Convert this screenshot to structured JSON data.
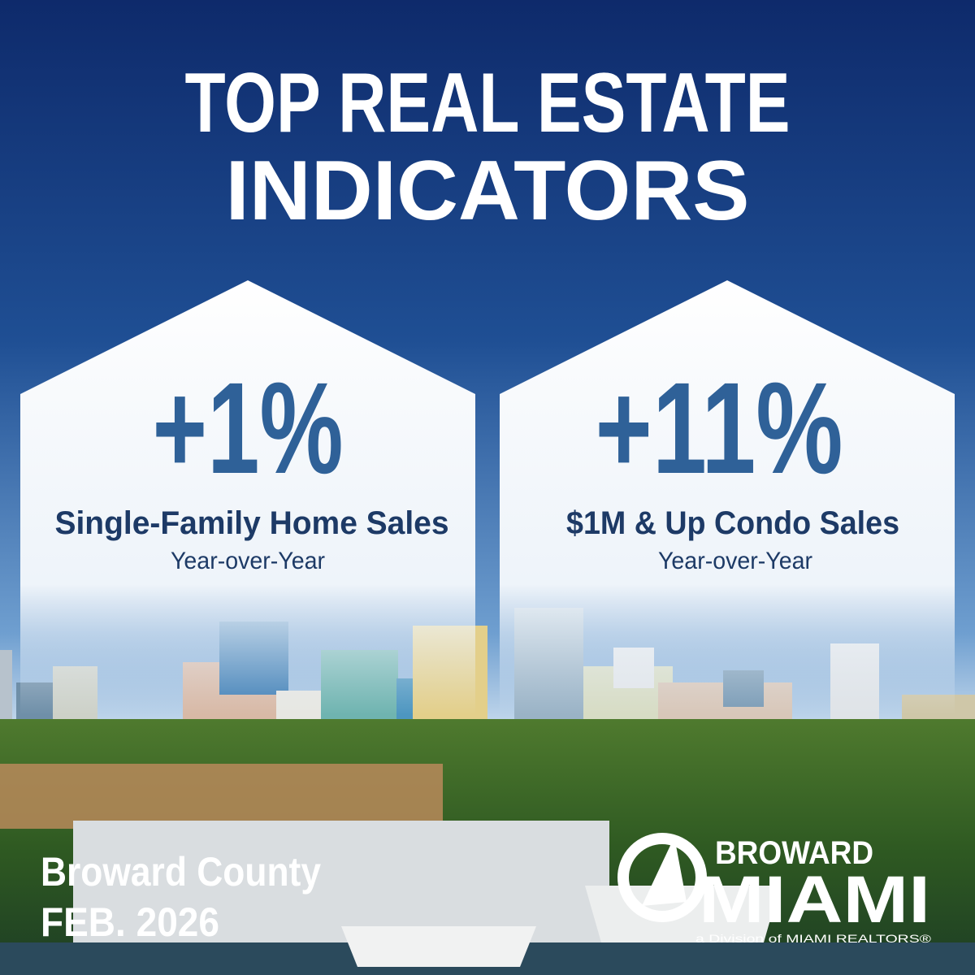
{
  "header": {
    "title_lines": [
      "TOP REAL ESTATE",
      "INDICATORS"
    ]
  },
  "cards": [
    {
      "value": "+1%",
      "label": "Single-Family Home Sales",
      "period": "Year-over-Year"
    },
    {
      "value": "+11%",
      "label": "$1M & Up Condo Sales",
      "period": "Year-over-Year"
    }
  ],
  "footer": {
    "region": "Broward County",
    "date": "FEB. 2026"
  },
  "logo": {
    "line1": "BROWARD",
    "line2": "MIAMI",
    "tagline": "a Division of MIAMI REALTORS®"
  }
}
